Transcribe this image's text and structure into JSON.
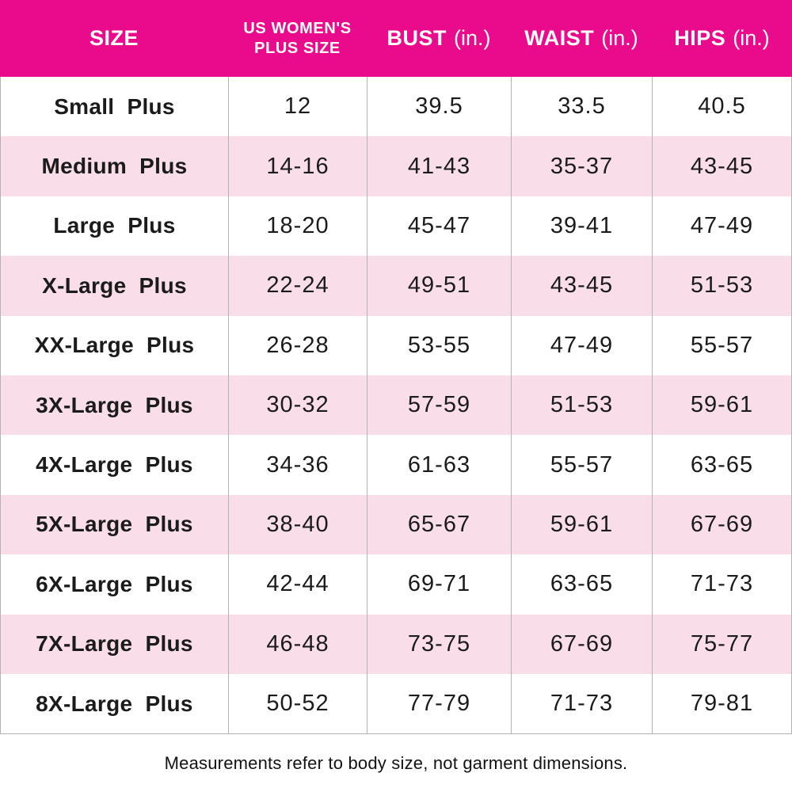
{
  "chart_data": {
    "type": "table",
    "title": "",
    "columns": [
      {
        "label": "SIZE",
        "unit": ""
      },
      {
        "label": "US WOMEN'S\nPLUS SIZE",
        "unit": ""
      },
      {
        "label": "BUST",
        "unit": "(in.)"
      },
      {
        "label": "WAIST",
        "unit": "(in.)"
      },
      {
        "label": "HIPS",
        "unit": "(in.)"
      }
    ],
    "rows": [
      {
        "size": "Small Plus",
        "us_plus_size": "12",
        "bust": "39.5",
        "waist": "33.5",
        "hips": "40.5"
      },
      {
        "size": "Medium Plus",
        "us_plus_size": "14-16",
        "bust": "41-43",
        "waist": "35-37",
        "hips": "43-45"
      },
      {
        "size": "Large Plus",
        "us_plus_size": "18-20",
        "bust": "45-47",
        "waist": "39-41",
        "hips": "47-49"
      },
      {
        "size": "X-Large Plus",
        "us_plus_size": "22-24",
        "bust": "49-51",
        "waist": "43-45",
        "hips": "51-53"
      },
      {
        "size": "XX-Large Plus",
        "us_plus_size": "26-28",
        "bust": "53-55",
        "waist": "47-49",
        "hips": "55-57"
      },
      {
        "size": "3X-Large Plus",
        "us_plus_size": "30-32",
        "bust": "57-59",
        "waist": "51-53",
        "hips": "59-61"
      },
      {
        "size": "4X-Large Plus",
        "us_plus_size": "34-36",
        "bust": "61-63",
        "waist": "55-57",
        "hips": "63-65"
      },
      {
        "size": "5X-Large Plus",
        "us_plus_size": "38-40",
        "bust": "65-67",
        "waist": "59-61",
        "hips": "67-69"
      },
      {
        "size": "6X-Large Plus",
        "us_plus_size": "42-44",
        "bust": "69-71",
        "waist": "63-65",
        "hips": "71-73"
      },
      {
        "size": "7X-Large Plus",
        "us_plus_size": "46-48",
        "bust": "73-75",
        "waist": "67-69",
        "hips": "75-77"
      },
      {
        "size": "8X-Large Plus",
        "us_plus_size": "50-52",
        "bust": "77-79",
        "waist": "71-73",
        "hips": "79-81"
      }
    ],
    "footnote": "Measurements refer to body size, not garment dimensions.",
    "layout": {
      "row_striping": "white / light pink alternating",
      "grid_lines": "vertical only"
    }
  },
  "colors": {
    "header_bg": "#EA0B8C",
    "header_text": "#FFFFFF",
    "row_alt_bg": "#F9DEE9",
    "border": "#B3B3B3",
    "text": "#1B1B1B"
  }
}
